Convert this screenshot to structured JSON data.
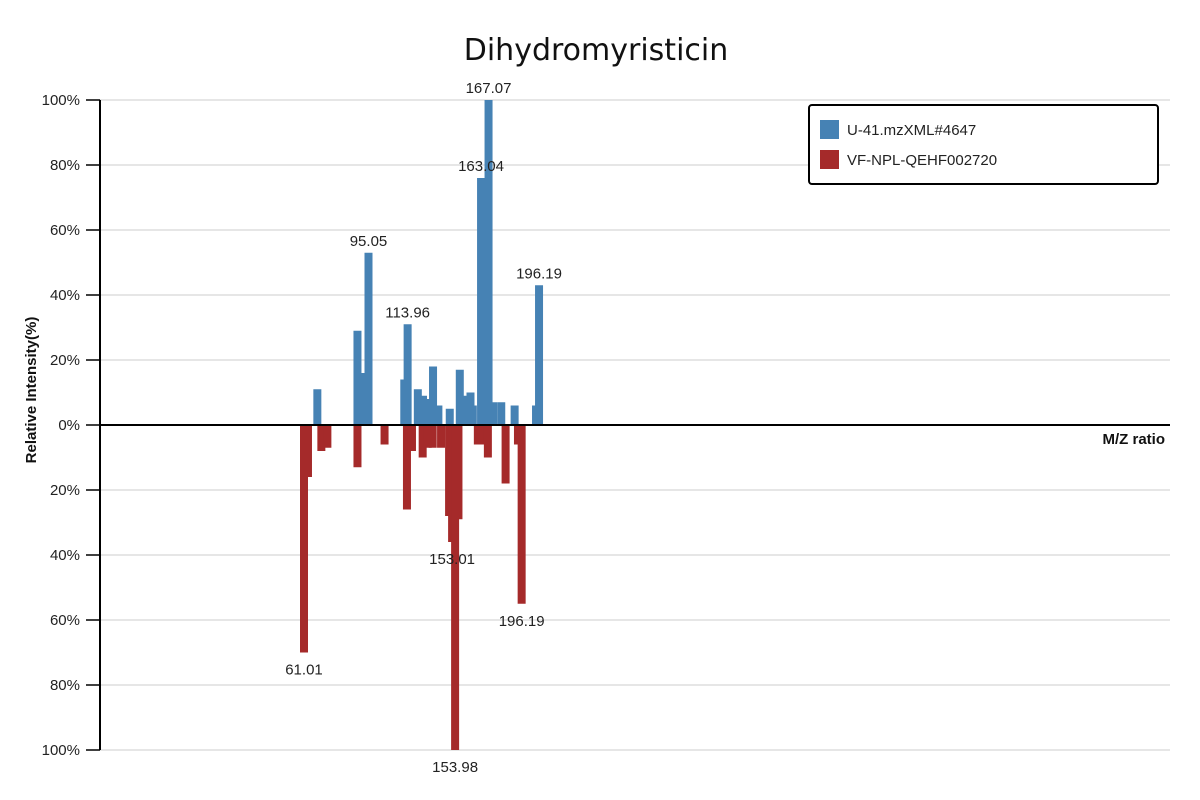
{
  "chart_data": {
    "type": "bar",
    "title": "Dihydromyristicin",
    "xlabel": "M/Z ratio",
    "ylabel": "Relative Intensity(%)",
    "yticks_top": [
      "100%",
      "80%",
      "60%",
      "40%",
      "20%",
      "0%"
    ],
    "yticks_bottom": [
      "20%",
      "40%",
      "60%",
      "80%",
      "100%"
    ],
    "ylim": [
      -100,
      100
    ],
    "xlim": [
      0,
      320
    ],
    "grid": true,
    "legend_position": "top-right",
    "series": [
      {
        "name": "U-41.mzXML#4647",
        "color": "#4682b4",
        "direction": "up",
        "peaks": [
          {
            "mz": 65.0,
            "intensity": 11
          },
          {
            "mz": 77.0,
            "intensity": 29
          },
          {
            "mz": 78.6,
            "intensity": 16
          },
          {
            "mz": 80.3,
            "intensity": 53
          },
          {
            "mz": 91.0,
            "intensity": 14
          },
          {
            "mz": 92.0,
            "intensity": 31
          },
          {
            "mz": 95.05,
            "intensity": 11
          },
          {
            "mz": 96.6,
            "intensity": 9
          },
          {
            "mz": 98.5,
            "intensity": 8
          },
          {
            "mz": 99.6,
            "intensity": 18
          },
          {
            "mz": 101.2,
            "intensity": 6
          },
          {
            "mz": 104.6,
            "intensity": 5
          },
          {
            "mz": 107.6,
            "intensity": 17
          },
          {
            "mz": 108.8,
            "intensity": 9
          },
          {
            "mz": 109.8,
            "intensity": 8
          },
          {
            "mz": 110.8,
            "intensity": 10
          },
          {
            "mz": 111.5,
            "intensity": 6
          },
          {
            "mz": 113.96,
            "intensity": 76
          },
          {
            "mz": 116.2,
            "intensity": 100
          },
          {
            "mz": 117.6,
            "intensity": 7
          },
          {
            "mz": 120.0,
            "intensity": 7
          },
          {
            "mz": 124.0,
            "intensity": 6
          },
          {
            "mz": 130.4,
            "intensity": 6
          },
          {
            "mz": 131.3,
            "intensity": 43
          }
        ]
      },
      {
        "name": "VF-NPL-QEHF002720",
        "color": "#a52a2a",
        "direction": "down",
        "peaks": [
          {
            "mz": 61.01,
            "intensity": 70
          },
          {
            "mz": 62.2,
            "intensity": 16
          },
          {
            "mz": 66.2,
            "intensity": 8
          },
          {
            "mz": 68.0,
            "intensity": 7
          },
          {
            "mz": 77.0,
            "intensity": 13
          },
          {
            "mz": 85.1,
            "intensity": 6
          },
          {
            "mz": 91.8,
            "intensity": 26
          },
          {
            "mz": 93.3,
            "intensity": 8
          },
          {
            "mz": 96.5,
            "intensity": 10
          },
          {
            "mz": 98.0,
            "intensity": 7
          },
          {
            "mz": 99.5,
            "intensity": 7
          },
          {
            "mz": 102.0,
            "intensity": 7
          },
          {
            "mz": 104.4,
            "intensity": 28
          },
          {
            "mz": 105.3,
            "intensity": 36
          },
          {
            "mz": 106.2,
            "intensity": 100
          },
          {
            "mz": 107.2,
            "intensity": 29
          },
          {
            "mz": 113.0,
            "intensity": 6
          },
          {
            "mz": 115.0,
            "intensity": 6
          },
          {
            "mz": 116.0,
            "intensity": 10
          },
          {
            "mz": 121.3,
            "intensity": 18
          },
          {
            "mz": 125.0,
            "intensity": 6
          },
          {
            "mz": 126.1,
            "intensity": 55
          }
        ]
      }
    ],
    "annotations_top": [
      {
        "text": "167.07",
        "mz": 116.2,
        "intensity": 100
      },
      {
        "text": "163.04",
        "mz": 113.96,
        "intensity": 76
      },
      {
        "text": "95.05",
        "mz": 80.3,
        "intensity": 53
      },
      {
        "text": "113.96",
        "mz": 92.0,
        "intensity": 31
      },
      {
        "text": "196.19",
        "mz": 131.3,
        "intensity": 43
      }
    ],
    "annotations_bottom": [
      {
        "text": "61.01",
        "mz": 61.01,
        "intensity": 70
      },
      {
        "text": "153.01",
        "mz": 105.3,
        "intensity": 36
      },
      {
        "text": "196.19",
        "mz": 126.1,
        "intensity": 55
      },
      {
        "text": "153.98",
        "mz": 106.2,
        "intensity": 100
      }
    ]
  }
}
